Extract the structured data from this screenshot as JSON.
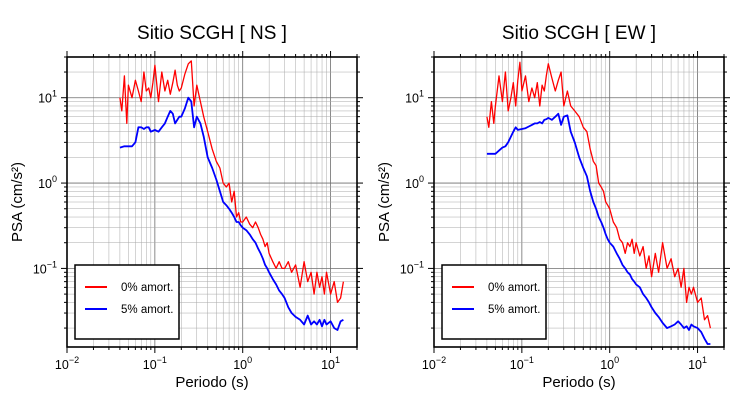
{
  "chart_data": [
    {
      "type": "line",
      "title": "Sitio SCGH [ NS ]",
      "xlabel": "Periodo (s)",
      "ylabel": "PSA (cm/s²)",
      "xscale": "log",
      "yscale": "log",
      "xlim": [
        0.01,
        20
      ],
      "ylim": [
        0.012,
        30
      ],
      "xticks": [
        {
          "v": 0.01,
          "b": "10",
          "e": "−2"
        },
        {
          "v": 0.1,
          "b": "10",
          "e": "−1"
        },
        {
          "v": 1,
          "b": "10",
          "e": "0"
        },
        {
          "v": 10,
          "b": "10",
          "e": "1"
        }
      ],
      "yticks": [
        {
          "v": 0.1,
          "b": "10",
          "e": "−1"
        },
        {
          "v": 1,
          "b": "10",
          "e": "0"
        },
        {
          "v": 10,
          "b": "10",
          "e": "1"
        }
      ],
      "grid": true,
      "legend_position": "bottom-left",
      "series": [
        {
          "name": "0% amort.",
          "color": "#ff0000",
          "x": [
            0.04,
            0.042,
            0.045,
            0.048,
            0.05,
            0.055,
            0.06,
            0.065,
            0.07,
            0.075,
            0.08,
            0.085,
            0.09,
            0.095,
            0.1,
            0.11,
            0.12,
            0.13,
            0.14,
            0.15,
            0.16,
            0.17,
            0.18,
            0.19,
            0.2,
            0.22,
            0.24,
            0.26,
            0.28,
            0.3,
            0.33,
            0.36,
            0.4,
            0.45,
            0.5,
            0.55,
            0.6,
            0.65,
            0.7,
            0.75,
            0.8,
            0.85,
            0.9,
            0.95,
            1.0,
            1.1,
            1.2,
            1.3,
            1.4,
            1.5,
            1.6,
            1.7,
            1.8,
            1.9,
            2.0,
            2.2,
            2.4,
            2.6,
            2.8,
            3.0,
            3.3,
            3.6,
            4.0,
            4.5,
            5.0,
            5.5,
            6.0,
            6.5,
            7.0,
            7.5,
            8.0,
            8.5,
            9.0,
            10.0,
            11.0,
            12.0,
            13.0,
            14.0
          ],
          "y": [
            10,
            7,
            18,
            5,
            14,
            10,
            16,
            12,
            9,
            20,
            12,
            13,
            10,
            15,
            24,
            9,
            20,
            12,
            16,
            11,
            15,
            21,
            14,
            12,
            13,
            19,
            25,
            27,
            8,
            14,
            9,
            6,
            4,
            2.5,
            1.8,
            1.5,
            1.0,
            0.9,
            1.0,
            0.6,
            0.8,
            0.4,
            0.45,
            0.35,
            0.35,
            0.4,
            0.33,
            0.3,
            0.35,
            0.3,
            0.25,
            0.22,
            0.18,
            0.2,
            0.15,
            0.12,
            0.1,
            0.12,
            0.1,
            0.1,
            0.12,
            0.09,
            0.11,
            0.06,
            0.12,
            0.07,
            0.09,
            0.05,
            0.09,
            0.06,
            0.08,
            0.05,
            0.09,
            0.05,
            0.07,
            0.04,
            0.045,
            0.07
          ]
        },
        {
          "name": "5% amort.",
          "color": "#0000ff",
          "x": [
            0.04,
            0.045,
            0.05,
            0.055,
            0.06,
            0.065,
            0.07,
            0.075,
            0.08,
            0.085,
            0.09,
            0.1,
            0.11,
            0.12,
            0.13,
            0.14,
            0.15,
            0.16,
            0.17,
            0.18,
            0.19,
            0.2,
            0.22,
            0.24,
            0.26,
            0.28,
            0.3,
            0.33,
            0.36,
            0.4,
            0.45,
            0.5,
            0.55,
            0.6,
            0.65,
            0.7,
            0.75,
            0.8,
            0.85,
            0.9,
            0.95,
            1.0,
            1.1,
            1.2,
            1.3,
            1.4,
            1.5,
            1.6,
            1.7,
            1.8,
            1.9,
            2.0,
            2.2,
            2.4,
            2.6,
            2.8,
            3.0,
            3.3,
            3.6,
            4.0,
            4.5,
            5.0,
            5.5,
            6.0,
            6.5,
            7.0,
            7.5,
            8.0,
            8.5,
            9.0,
            10.0,
            11.0,
            12.0,
            13.0,
            14.0
          ],
          "y": [
            2.6,
            2.7,
            2.7,
            2.7,
            3.0,
            4.5,
            4.5,
            4.3,
            4.5,
            4.5,
            4.0,
            4.2,
            4.0,
            4.5,
            5.0,
            6.0,
            7.0,
            6.5,
            5.0,
            5.5,
            6.0,
            6.0,
            7.5,
            10.0,
            9.0,
            4.5,
            6.0,
            5.0,
            3.5,
            2.0,
            1.5,
            1.1,
            0.8,
            0.6,
            0.55,
            0.5,
            0.45,
            0.4,
            0.35,
            0.35,
            0.32,
            0.3,
            0.28,
            0.25,
            0.22,
            0.2,
            0.17,
            0.15,
            0.13,
            0.11,
            0.1,
            0.09,
            0.075,
            0.065,
            0.055,
            0.05,
            0.045,
            0.035,
            0.03,
            0.027,
            0.025,
            0.022,
            0.028,
            0.022,
            0.024,
            0.022,
            0.025,
            0.021,
            0.025,
            0.022,
            0.024,
            0.02,
            0.019,
            0.024,
            0.025
          ]
        }
      ]
    },
    {
      "type": "line",
      "title": "Sitio SCGH [ EW ]",
      "xlabel": "Periodo (s)",
      "ylabel": "PSA (cm/s²)",
      "xscale": "log",
      "yscale": "log",
      "xlim": [
        0.01,
        20
      ],
      "ylim": [
        0.012,
        30
      ],
      "xticks": [
        {
          "v": 0.01,
          "b": "10",
          "e": "−2"
        },
        {
          "v": 0.1,
          "b": "10",
          "e": "−1"
        },
        {
          "v": 1,
          "b": "10",
          "e": "0"
        },
        {
          "v": 10,
          "b": "10",
          "e": "1"
        }
      ],
      "yticks": [
        {
          "v": 0.1,
          "b": "10",
          "e": "−1"
        },
        {
          "v": 1,
          "b": "10",
          "e": "0"
        },
        {
          "v": 10,
          "b": "10",
          "e": "1"
        }
      ],
      "grid": true,
      "legend_position": "bottom-left",
      "series": [
        {
          "name": "0% amort.",
          "color": "#ff0000",
          "x": [
            0.04,
            0.042,
            0.045,
            0.048,
            0.05,
            0.055,
            0.06,
            0.065,
            0.07,
            0.075,
            0.08,
            0.085,
            0.09,
            0.095,
            0.1,
            0.11,
            0.12,
            0.13,
            0.14,
            0.15,
            0.16,
            0.17,
            0.18,
            0.19,
            0.2,
            0.22,
            0.24,
            0.26,
            0.28,
            0.3,
            0.33,
            0.36,
            0.4,
            0.45,
            0.5,
            0.55,
            0.6,
            0.65,
            0.7,
            0.75,
            0.8,
            0.85,
            0.9,
            0.95,
            1.0,
            1.1,
            1.2,
            1.3,
            1.4,
            1.5,
            1.6,
            1.7,
            1.8,
            1.9,
            2.0,
            2.2,
            2.4,
            2.6,
            2.8,
            3.0,
            3.3,
            3.6,
            4.0,
            4.5,
            5.0,
            5.5,
            6.0,
            6.5,
            7.0,
            7.5,
            8.0,
            8.5,
            9.0,
            10.0,
            11.0,
            12.0,
            13.0,
            14.0
          ],
          "y": [
            6,
            4.5,
            9,
            5,
            8,
            18,
            9,
            20,
            7,
            10,
            15,
            8,
            16,
            26,
            12,
            18,
            9,
            13,
            10,
            15,
            8,
            14,
            12,
            18,
            25,
            17,
            12,
            16,
            20,
            8,
            12,
            8,
            7,
            6,
            4.5,
            4.0,
            2.5,
            1.8,
            1.6,
            1.0,
            0.9,
            0.8,
            0.6,
            0.55,
            0.5,
            0.35,
            0.3,
            0.22,
            0.2,
            0.15,
            0.2,
            0.18,
            0.22,
            0.15,
            0.2,
            0.14,
            0.18,
            0.1,
            0.14,
            0.08,
            0.15,
            0.09,
            0.2,
            0.1,
            0.13,
            0.08,
            0.1,
            0.06,
            0.1,
            0.04,
            0.06,
            0.05,
            0.06,
            0.04,
            0.045,
            0.025,
            0.028,
            0.02
          ]
        },
        {
          "name": "5% amort.",
          "color": "#0000ff",
          "x": [
            0.04,
            0.045,
            0.05,
            0.055,
            0.06,
            0.065,
            0.07,
            0.075,
            0.08,
            0.085,
            0.09,
            0.1,
            0.11,
            0.12,
            0.13,
            0.14,
            0.15,
            0.16,
            0.17,
            0.18,
            0.19,
            0.2,
            0.22,
            0.24,
            0.26,
            0.28,
            0.3,
            0.33,
            0.36,
            0.4,
            0.45,
            0.5,
            0.55,
            0.6,
            0.65,
            0.7,
            0.75,
            0.8,
            0.85,
            0.9,
            0.95,
            1.0,
            1.1,
            1.2,
            1.3,
            1.4,
            1.5,
            1.6,
            1.7,
            1.8,
            1.9,
            2.0,
            2.2,
            2.4,
            2.6,
            2.8,
            3.0,
            3.3,
            3.6,
            4.0,
            4.5,
            5.0,
            5.5,
            6.0,
            6.5,
            7.0,
            7.5,
            8.0,
            8.5,
            9.0,
            10.0,
            11.0,
            12.0,
            13.0,
            14.0
          ],
          "y": [
            2.2,
            2.2,
            2.2,
            2.4,
            2.6,
            2.7,
            3.0,
            3.5,
            4.0,
            4.5,
            4.2,
            4.3,
            4.4,
            4.6,
            4.8,
            5.0,
            5.0,
            5.2,
            5.0,
            5.5,
            5.6,
            5.8,
            5.5,
            6.0,
            6.5,
            4.8,
            6.0,
            6.2,
            4.0,
            3.0,
            2.0,
            1.5,
            1.2,
            0.8,
            0.6,
            0.5,
            0.4,
            0.35,
            0.3,
            0.25,
            0.22,
            0.2,
            0.18,
            0.15,
            0.13,
            0.11,
            0.1,
            0.09,
            0.085,
            0.075,
            0.07,
            0.065,
            0.06,
            0.05,
            0.045,
            0.04,
            0.035,
            0.03,
            0.027,
            0.023,
            0.02,
            0.021,
            0.022,
            0.024,
            0.022,
            0.02,
            0.021,
            0.019,
            0.022,
            0.021,
            0.02,
            0.018,
            0.015,
            0.013,
            0.013
          ]
        }
      ]
    }
  ]
}
